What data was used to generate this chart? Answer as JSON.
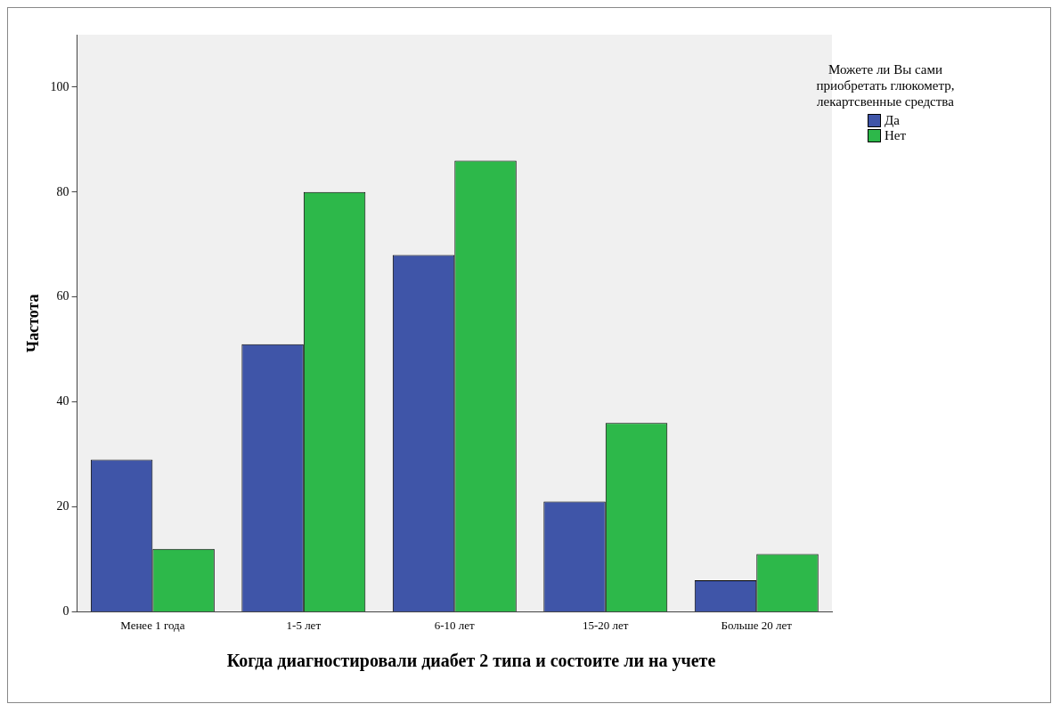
{
  "chart_data": {
    "type": "bar",
    "xlabel": "Когда диагностировали диабет 2 типа и состоите ли на учете",
    "ylabel": "Частота",
    "legend_title": "Можете ли Вы сами приобретать глюкометр, лекартсвенные средства",
    "categories": [
      "Менее 1 года",
      "1-5 лет",
      "6-10 лет",
      "15-20 лет",
      "Больше 20 лет"
    ],
    "series": [
      {
        "name": "Да",
        "color": "#3f55a8",
        "values": [
          29,
          51,
          68,
          21,
          6
        ]
      },
      {
        "name": "Нет",
        "color": "#2db84a",
        "values": [
          12,
          80,
          86,
          36,
          11
        ]
      }
    ],
    "ylim": [
      0,
      110
    ],
    "yticks": [
      0,
      20,
      40,
      60,
      80,
      100
    ],
    "grid": false,
    "legend": "top right"
  }
}
